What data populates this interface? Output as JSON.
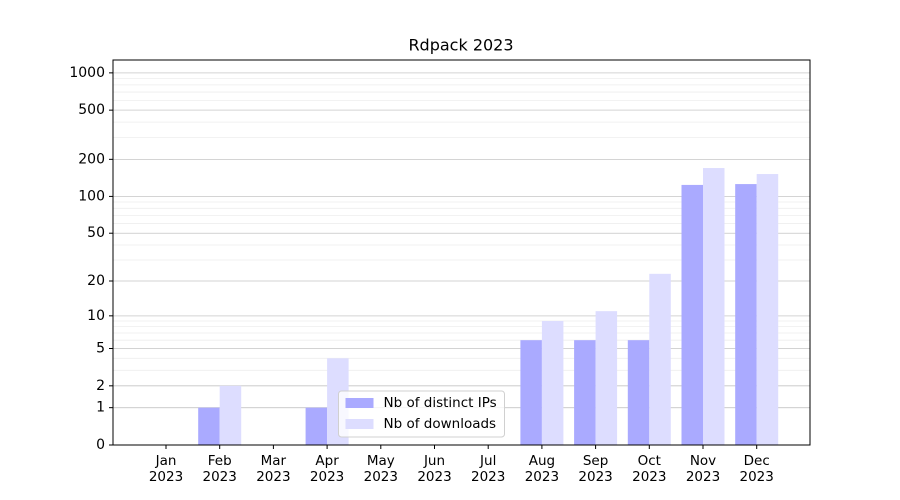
{
  "chart_data": {
    "type": "bar",
    "title": "Rdpack 2023",
    "categories": [
      "Jan\n2023",
      "Feb\n2023",
      "Mar\n2023",
      "Apr\n2023",
      "May\n2023",
      "Jun\n2023",
      "Jul\n2023",
      "Aug\n2023",
      "Sep\n2023",
      "Oct\n2023",
      "Nov\n2023",
      "Dec\n2023"
    ],
    "series": [
      {
        "name": "Nb of distinct IPs",
        "color": "#aaaaff",
        "values": [
          0,
          1,
          0,
          1,
          0,
          0,
          0,
          6,
          6,
          6,
          124,
          126
        ]
      },
      {
        "name": "Nb of downloads",
        "color": "#ddddff",
        "values": [
          0,
          2,
          0,
          4,
          0,
          0,
          0,
          9,
          11,
          23,
          170,
          152
        ]
      }
    ],
    "yscale": "log1p",
    "ylim": [
      0,
      1270
    ],
    "yticks": [
      0,
      1,
      2,
      5,
      10,
      20,
      50,
      100,
      200,
      500,
      1000
    ],
    "grid": true,
    "legend": "lower center"
  }
}
